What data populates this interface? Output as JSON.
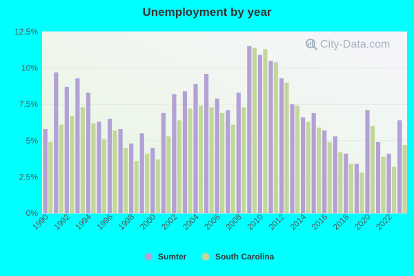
{
  "chart_data": {
    "type": "bar",
    "title": "Unemployment by year",
    "xlabel": "",
    "ylabel": "",
    "ylim": [
      0,
      12.5
    ],
    "yticks": [
      0,
      2.5,
      5,
      7.5,
      10,
      12.5
    ],
    "ytick_labels": [
      "0%",
      "2.5%",
      "5%",
      "7.5%",
      "10%",
      "12.5%"
    ],
    "xtick_labels": [
      "1990",
      "1992",
      "1994",
      "1996",
      "1998",
      "2000",
      "2002",
      "2004",
      "2006",
      "2008",
      "2010",
      "2012",
      "2014",
      "2016",
      "2018",
      "2020",
      "2022"
    ],
    "grid": true,
    "legend": "bottom",
    "categories": [
      "1990",
      "1991",
      "1992",
      "1993",
      "1994",
      "1995",
      "1996",
      "1997",
      "1998",
      "1999",
      "2000",
      "2001",
      "2002",
      "2003",
      "2004",
      "2005",
      "2006",
      "2007",
      "2008",
      "2009",
      "2010",
      "2011",
      "2012",
      "2013",
      "2014",
      "2015",
      "2016",
      "2017",
      "2018",
      "2019",
      "2020",
      "2021",
      "2022",
      "2023"
    ],
    "series": [
      {
        "name": "Sumter",
        "color": "#b3a1d6",
        "values": [
          5.8,
          9.7,
          8.7,
          9.3,
          8.3,
          6.3,
          6.5,
          5.8,
          4.8,
          5.5,
          4.5,
          6.9,
          8.2,
          8.4,
          8.9,
          9.6,
          7.9,
          7.1,
          8.3,
          11.5,
          10.9,
          10.5,
          9.3,
          7.5,
          6.6,
          6.9,
          5.7,
          5.3,
          4.1,
          3.4,
          7.1,
          4.9,
          4.1,
          6.4
        ]
      },
      {
        "name": "South Carolina",
        "color": "#c3d79c",
        "values": [
          4.9,
          6.1,
          6.7,
          7.3,
          6.2,
          5.1,
          5.7,
          4.5,
          3.6,
          4.1,
          3.7,
          5.3,
          6.4,
          7.2,
          7.4,
          7.3,
          6.9,
          6.1,
          7.3,
          11.4,
          11.3,
          10.4,
          9.0,
          7.4,
          6.3,
          5.9,
          4.9,
          4.2,
          3.4,
          2.8,
          6.0,
          3.9,
          3.2,
          4.7
        ]
      }
    ]
  },
  "watermark": {
    "text": "City-Data.com",
    "icon": "magnifier-icon"
  }
}
